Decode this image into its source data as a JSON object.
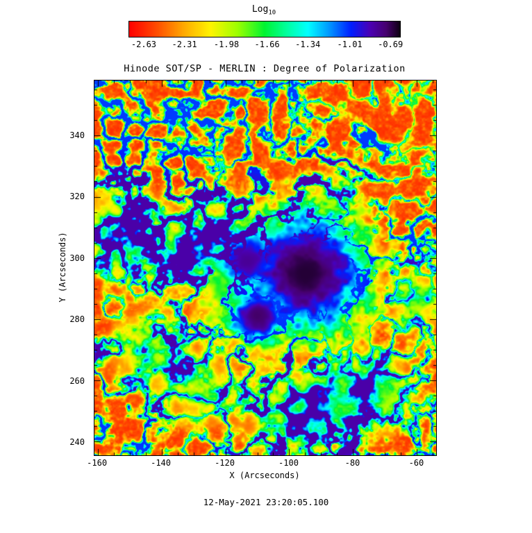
{
  "figure": {
    "background": "#ffffff",
    "text_color": "#000000"
  },
  "footer": {
    "timestamp": "12-May-2021 23:20:05.100"
  },
  "chart_data": {
    "type": "heatmap",
    "title": "Hinode SOT/SP - MERLIN : Degree of Polarization",
    "xlabel": "X (Arcseconds)",
    "ylabel": "Y (Arcseconds)",
    "xlim": [
      -161,
      -54
    ],
    "ylim": [
      235.5,
      358
    ],
    "x_ticks": [
      -160,
      -140,
      -120,
      -100,
      -80,
      -60
    ],
    "y_ticks": [
      240,
      260,
      280,
      300,
      320,
      340
    ],
    "grid": false,
    "legend": "none",
    "value_units": "log10 degree of polarization",
    "colorbar": {
      "label_main": "Log",
      "label_sub": "10",
      "orientation": "horizontal",
      "position": "top",
      "ticks": [
        -2.63,
        -2.31,
        -1.98,
        -1.66,
        -1.34,
        -1.01,
        -0.69
      ],
      "range": [
        -2.75,
        -0.62
      ]
    },
    "colormap_stops": [
      {
        "t": 0.0,
        "c": "#ff0000"
      },
      {
        "t": 0.1,
        "c": "#ff4c00"
      },
      {
        "t": 0.2,
        "c": "#ffa800"
      },
      {
        "t": 0.3,
        "c": "#fff400"
      },
      {
        "t": 0.4,
        "c": "#9cff00"
      },
      {
        "t": 0.5,
        "c": "#00f432"
      },
      {
        "t": 0.58,
        "c": "#00ff9c"
      },
      {
        "t": 0.66,
        "c": "#00ffff"
      },
      {
        "t": 0.74,
        "c": "#0096ff"
      },
      {
        "t": 0.82,
        "c": "#001eff"
      },
      {
        "t": 0.89,
        "c": "#4b00b4"
      },
      {
        "t": 0.95,
        "c": "#46006e"
      },
      {
        "t": 1.0,
        "c": "#0f0014"
      }
    ],
    "features": {
      "noise_seed": 1337,
      "background_log": -2.58,
      "sunspots": [
        {
          "x": -95,
          "y": 295,
          "radius": 24,
          "peak_log": -0.66
        },
        {
          "x": -110,
          "y": 281,
          "radius": 11,
          "peak_log": -0.72
        },
        {
          "x": -113,
          "y": 299,
          "radius": 12,
          "peak_log": -0.8
        },
        {
          "x": -104,
          "y": 292,
          "radius": 26,
          "peak_log": -1.35
        }
      ],
      "plage_regions": [
        {
          "x": -152,
          "y": 308,
          "radius": 14,
          "level_log": -1.15
        },
        {
          "x": -131,
          "y": 300,
          "radius": 10,
          "level_log": -1.35
        },
        {
          "x": -74,
          "y": 257,
          "radius": 12,
          "level_log": -1.15
        },
        {
          "x": -90,
          "y": 252,
          "radius": 10,
          "level_log": -1.5
        },
        {
          "x": -60,
          "y": 286,
          "radius": 9,
          "level_log": -1.5
        },
        {
          "x": -145,
          "y": 270,
          "radius": 12,
          "level_log": -1.6
        },
        {
          "x": -100,
          "y": 248,
          "radius": 14,
          "level_log": -1.55
        },
        {
          "x": -128,
          "y": 258,
          "radius": 12,
          "level_log": -1.6
        },
        {
          "x": -120,
          "y": 310,
          "radius": 12,
          "level_log": -1.55
        },
        {
          "x": -87,
          "y": 318,
          "radius": 10,
          "level_log": -1.7
        }
      ]
    }
  }
}
